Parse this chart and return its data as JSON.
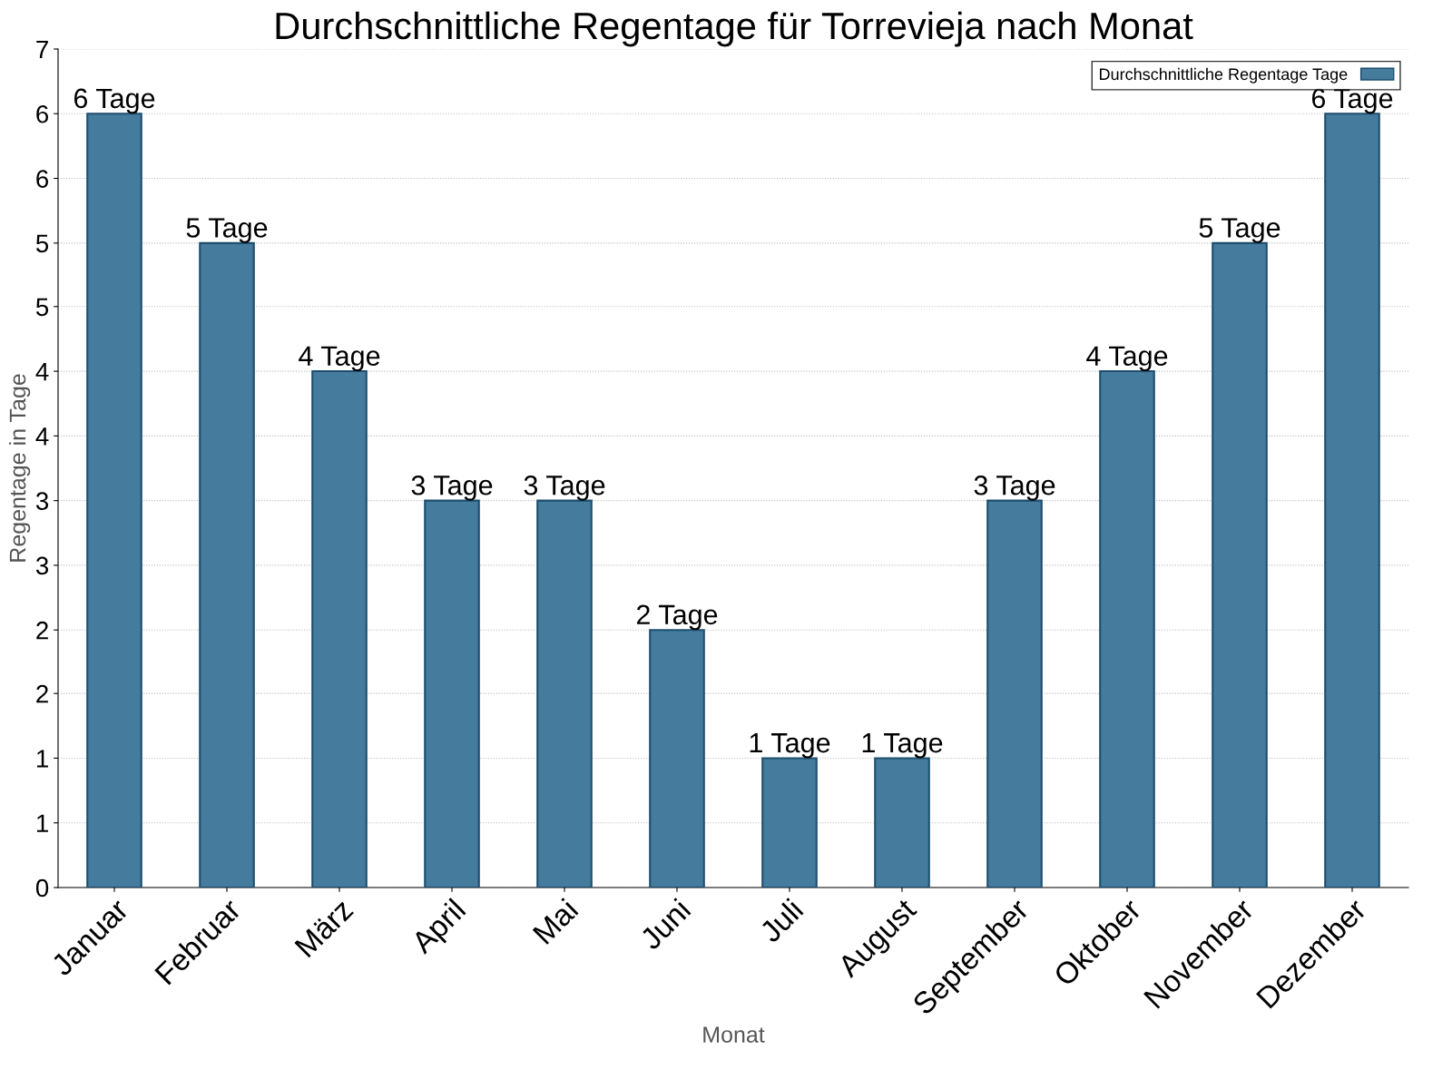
{
  "chart_data": {
    "type": "bar",
    "title": "Durchschnittliche Regentage für Torrevieja nach Monat",
    "xlabel": "Monat",
    "ylabel": "Regentage in Tage",
    "categories": [
      "Januar",
      "Februar",
      "März",
      "April",
      "Mai",
      "Juni",
      "Juli",
      "August",
      "September",
      "Oktober",
      "November",
      "Dezember"
    ],
    "series": [
      {
        "name": "Durchschnittliche Regentage Tage",
        "color": "#457b9d",
        "values": [
          6.46,
          5.38,
          4.31,
          3.23,
          3.23,
          2.15,
          1.08,
          1.08,
          3.23,
          4.31,
          5.38,
          6.46
        ],
        "value_labels": [
          "6 Tage",
          "5 Tage",
          "4 Tage",
          "3 Tage",
          "3 Tage",
          "2 Tage",
          "1 Tage",
          "1 Tage",
          "3 Tage",
          "4 Tage",
          "5 Tage",
          "6 Tage"
        ]
      }
    ],
    "ylim": [
      0,
      7
    ],
    "yticks": [
      0,
      {
        "value": 0.54,
        "label": "1"
      },
      {
        "value": 1.08,
        "label": "1"
      },
      {
        "value": 1.62,
        "label": "2"
      },
      {
        "value": 2.15,
        "label": "2"
      },
      {
        "value": 2.69,
        "label": "3"
      },
      {
        "value": 3.23,
        "label": "3"
      },
      {
        "value": 3.77,
        "label": "4"
      },
      {
        "value": 4.31,
        "label": "4"
      },
      {
        "value": 4.85,
        "label": "5"
      },
      {
        "value": 5.38,
        "label": "5"
      },
      {
        "value": 5.92,
        "label": "6"
      },
      {
        "value": 6.46,
        "label": "6"
      },
      7
    ],
    "grid": "y",
    "legend": "top right"
  }
}
